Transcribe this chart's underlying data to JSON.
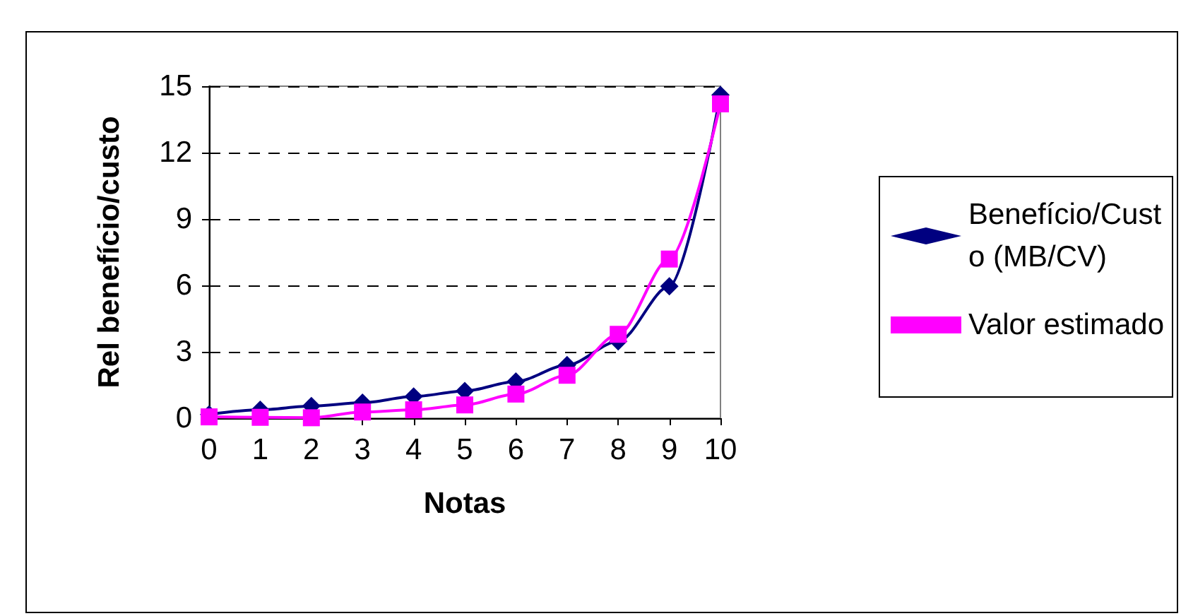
{
  "chart_data": {
    "type": "line",
    "xlabel": "Notas",
    "ylabel": "Rel benefício/custo",
    "categories": [
      "0",
      "1",
      "2",
      "3",
      "4",
      "5",
      "6",
      "7",
      "8",
      "9",
      "10"
    ],
    "series": [
      {
        "name": "Benefício/Cust\no (MB/CV)",
        "color": "#000080",
        "marker": "diamond",
        "values": [
          0.17,
          0.38,
          0.55,
          0.7,
          0.98,
          1.23,
          1.66,
          2.4,
          3.47,
          5.96,
          14.6
        ]
      },
      {
        "name": "Valor estimado",
        "color": "#ff00ff",
        "marker": "square",
        "values": [
          0.06,
          0.04,
          0.02,
          0.28,
          0.38,
          0.6,
          1.09,
          1.94,
          3.79,
          7.19,
          14.2
        ]
      }
    ],
    "ylim": [
      0,
      15
    ],
    "yticks": [
      0,
      3,
      6,
      9,
      12,
      15
    ],
    "grid": "y",
    "legend": "right",
    "line_style": "solid"
  }
}
